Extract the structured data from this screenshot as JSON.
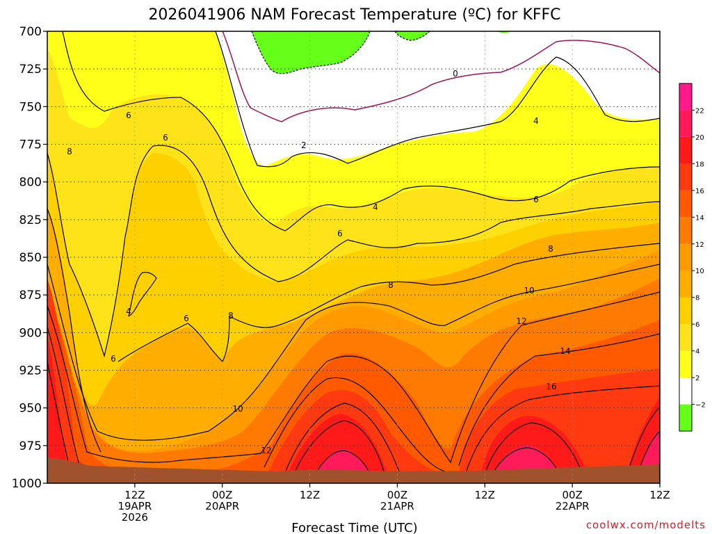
{
  "chart_data": {
    "type": "heatmap",
    "title": "2026041906 NAM Forecast Temperature (ºC) for KFFC",
    "xlabel": "Forecast Time (UTC)",
    "ylabel": "",
    "credit": "coolwx.com/modelts",
    "y_axis": {
      "ticks": [
        700,
        725,
        750,
        775,
        800,
        825,
        850,
        875,
        900,
        925,
        950,
        975,
        1000
      ],
      "tick_labels": [
        "700",
        "725",
        "750",
        "775",
        "800",
        "825",
        "850",
        "875",
        "900",
        "925",
        "950",
        "975",
        "1000"
      ],
      "range": [
        700,
        1000
      ],
      "inverted": true
    },
    "x_axis": {
      "range_hours": [
        -6,
        78
      ],
      "ticks": [
        {
          "hour": 6,
          "l1": "12Z",
          "l2": "19APR",
          "l3": "2026"
        },
        {
          "hour": 18,
          "l1": "00Z",
          "l2": "20APR",
          "l3": ""
        },
        {
          "hour": 30,
          "l1": "12Z",
          "l2": "",
          "l3": ""
        },
        {
          "hour": 42,
          "l1": "00Z",
          "l2": "21APR",
          "l3": ""
        },
        {
          "hour": 54,
          "l1": "12Z",
          "l2": "",
          "l3": ""
        },
        {
          "hour": 66,
          "l1": "00Z",
          "l2": "22APR",
          "l3": ""
        },
        {
          "hour": 78,
          "l1": "12Z",
          "l2": "",
          "l3": ""
        }
      ],
      "grid": "dotted"
    },
    "colorbar": {
      "levels": [
        -2,
        2,
        4,
        6,
        8,
        10,
        12,
        14,
        16,
        18,
        20,
        22
      ],
      "tick_labels": [
        "−2",
        "2",
        "4",
        "6",
        "8",
        "10",
        "12",
        "14",
        "16",
        "18",
        "20",
        "22"
      ],
      "colors": [
        "#66ff1a",
        "#ffffff",
        "#ffff1a",
        "#ffe31a",
        "#ffd000",
        "#ffae00",
        "#ff9a00",
        "#ff7a00",
        "#ff5a00",
        "#ff3a10",
        "#ff1a1a",
        "#ff1a5a",
        "#ff1a8c"
      ]
    },
    "contour_labels": [
      "0",
      "2",
      "4",
      "4",
      "4",
      "6",
      "6",
      "6",
      "6",
      "6",
      "6",
      "8",
      "8",
      "8",
      "8",
      "10",
      "10",
      "12",
      "12",
      "14",
      "16"
    ],
    "ground_color": "#a0522d"
  }
}
